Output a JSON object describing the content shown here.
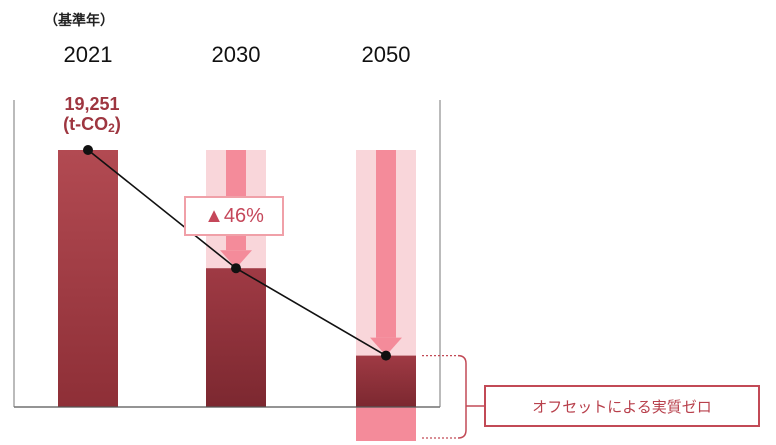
{
  "chart_data": {
    "type": "bar",
    "base_label": "（基準年）",
    "categories": [
      "2021",
      "2030",
      "2050"
    ],
    "values": [
      19251,
      10395.5,
      3850
    ],
    "value_label_lines": [
      "19,251",
      "(t-CO",
      "2",
      ")"
    ],
    "reduction_label": "▲46%",
    "offset_label": "オフセットによる実質ゼロ",
    "ylim": [
      0,
      19251
    ],
    "colors": {
      "bar": "#8e2f37",
      "bar_light": "#b24a52",
      "halo": "#f9d6da",
      "arrow": "#f48b9a",
      "line": "#111111",
      "offset_border": "#c24a56"
    }
  }
}
